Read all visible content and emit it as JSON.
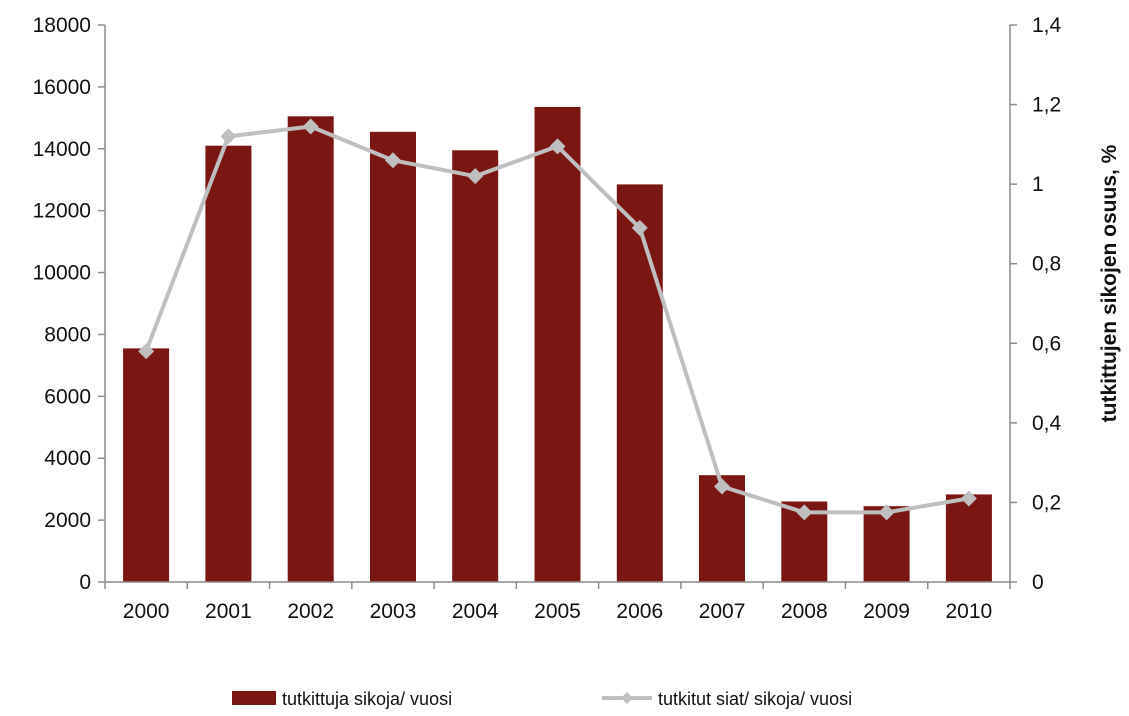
{
  "chart_data": {
    "type": "bar",
    "categories": [
      "2000",
      "2001",
      "2002",
      "2003",
      "2004",
      "2005",
      "2006",
      "2007",
      "2008",
      "2009",
      "2010"
    ],
    "series": [
      {
        "name": "tutkittuja sikoja/ vuosi",
        "type": "bar",
        "axis": "left",
        "color": "#7b1712",
        "values": [
          7550,
          14100,
          15050,
          14550,
          13950,
          15350,
          12850,
          3450,
          2600,
          2450,
          2830
        ]
      },
      {
        "name": "tutkitut siat/ sikoja/ vuosi",
        "type": "line",
        "axis": "right",
        "color": "#bfbfbf",
        "values": [
          0.58,
          1.12,
          1.145,
          1.06,
          1.02,
          1.095,
          0.89,
          0.24,
          0.175,
          0.175,
          0.21
        ]
      }
    ],
    "y_left": {
      "ylim": [
        0,
        18000
      ],
      "ticks": [
        "0",
        "2000",
        "4000",
        "6000",
        "8000",
        "10000",
        "12000",
        "14000",
        "16000",
        "18000"
      ],
      "tick_values": [
        0,
        2000,
        4000,
        6000,
        8000,
        10000,
        12000,
        14000,
        16000,
        18000
      ]
    },
    "y_right": {
      "ylim": [
        0,
        1.4
      ],
      "label": "tutkittujen sikojen osuus, %",
      "ticks": [
        "0",
        "0,2",
        "0,4",
        "0,6",
        "0,8",
        "1",
        "1,2",
        "1,4"
      ],
      "tick_values": [
        0,
        0.2,
        0.4,
        0.6,
        0.8,
        1.0,
        1.2,
        1.4
      ]
    },
    "grid": false,
    "legend_position": "bottom"
  }
}
